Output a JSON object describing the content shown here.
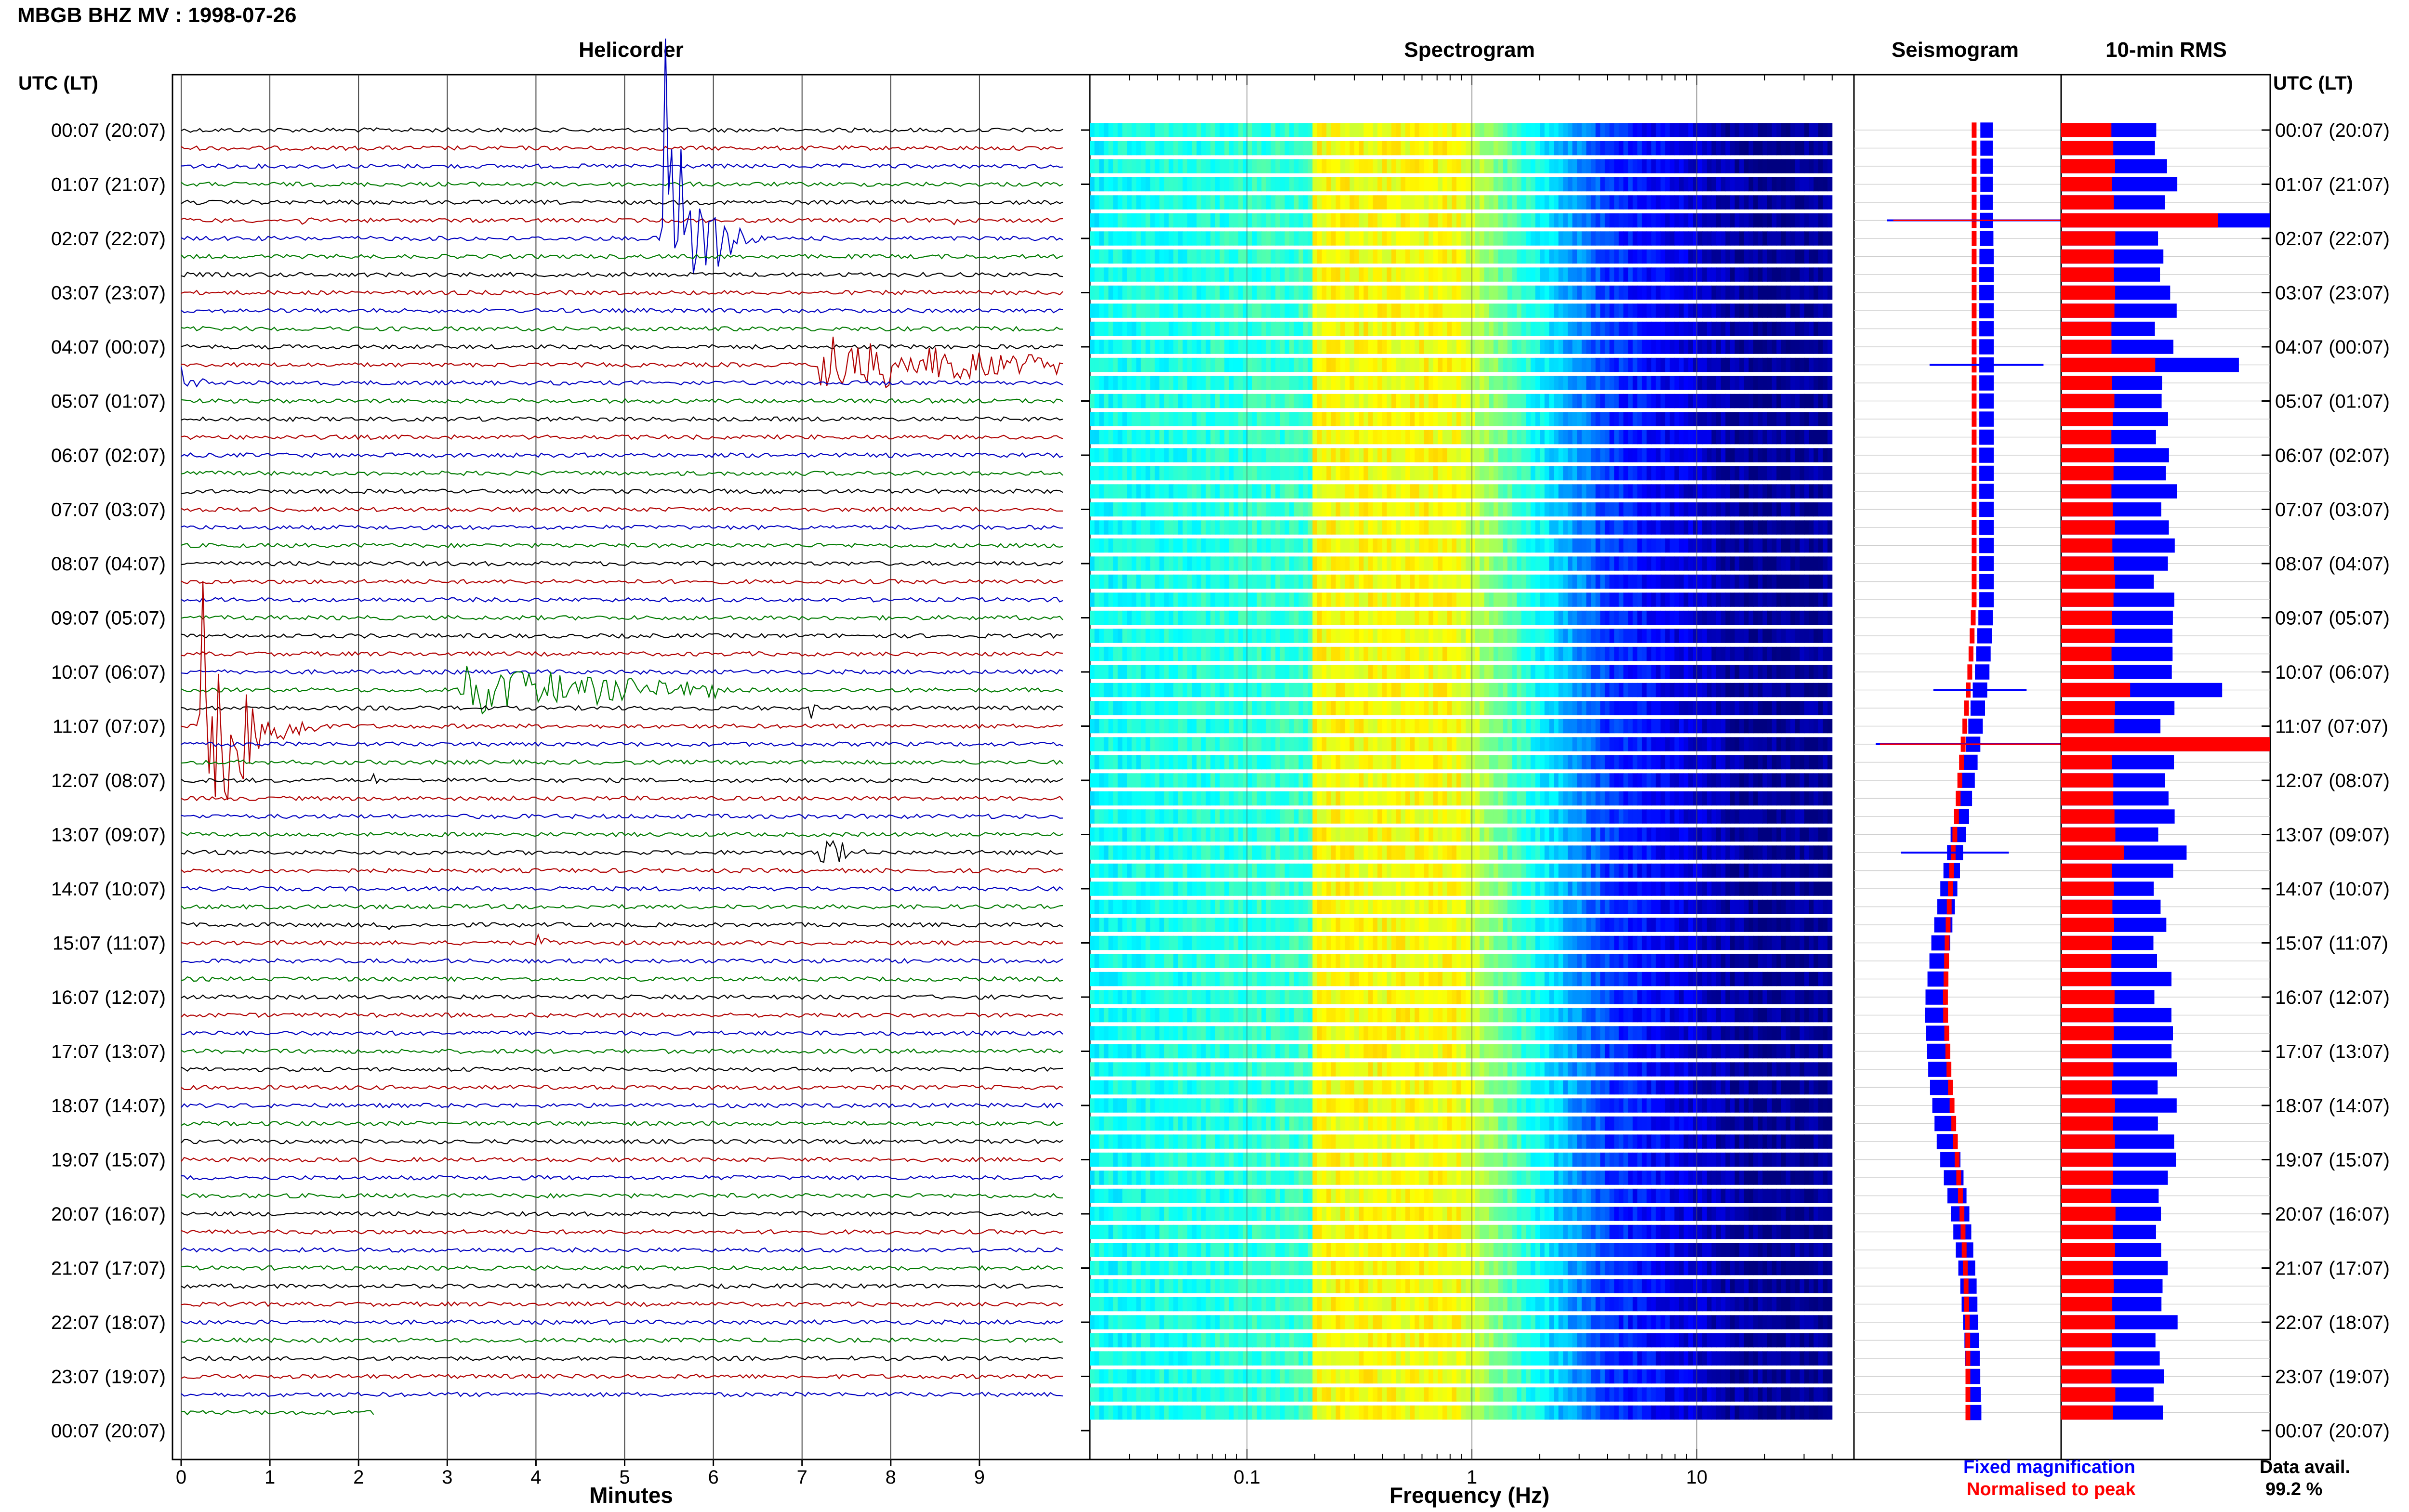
{
  "title": "MBGB BHZ MV : 1998-07-26",
  "panels": {
    "helicorder": "Helicorder",
    "spectrogram": "Spectrogram",
    "seismogram": "Seismogram",
    "rms": "10-min RMS"
  },
  "time_axis_label": "UTC (LT)",
  "time_labels": [
    "00:07 (20:07)",
    "01:07 (21:07)",
    "02:07 (22:07)",
    "03:07 (23:07)",
    "04:07 (00:07)",
    "05:07 (01:07)",
    "06:07 (02:07)",
    "07:07 (03:07)",
    "08:07 (04:07)",
    "09:07 (05:07)",
    "10:07 (06:07)",
    "11:07 (07:07)",
    "12:07 (08:07)",
    "13:07 (09:07)",
    "14:07 (10:07)",
    "15:07 (11:07)",
    "16:07 (12:07)",
    "17:07 (13:07)",
    "18:07 (14:07)",
    "19:07 (15:07)",
    "20:07 (16:07)",
    "21:07 (17:07)",
    "22:07 (18:07)",
    "23:07 (19:07)",
    "00:07 (20:07)"
  ],
  "legend": {
    "fixed": "Fixed magnification",
    "normalised": "Normalised to peak"
  },
  "availability": {
    "label": "Data avail.",
    "value": "99.2 %"
  },
  "colors": {
    "trace_cycle": [
      "#000000",
      "#b00000",
      "#0000c0",
      "#007a00"
    ],
    "fixed": "#0000ff",
    "normalised": "#ff0000"
  },
  "chart_data": [
    {
      "type": "line",
      "panel": "helicorder",
      "xlabel": "Minutes",
      "x_ticks": [
        "0",
        "1",
        "2",
        "3",
        "4",
        "5",
        "6",
        "7",
        "8",
        "9"
      ],
      "xlim": [
        0,
        10
      ],
      "rows": 72,
      "events": [
        {
          "row": 6,
          "start_min": 5.4,
          "dur_min": 1.2,
          "amp": 14,
          "color": "#007a00"
        },
        {
          "row": 5,
          "start_min": 1.3,
          "dur_min": 0.2,
          "amp": 0.7,
          "color": "#b00000"
        },
        {
          "row": 5,
          "start_min": 8.7,
          "dur_min": 0.2,
          "amp": 0.7,
          "color": "#b00000"
        },
        {
          "row": 13,
          "start_min": 7.2,
          "dur_min": 2.7,
          "amp": 2.0,
          "color": "#007a00"
        },
        {
          "row": 14,
          "start_min": 0.0,
          "dur_min": 0.5,
          "amp": 1.2,
          "color": "#000000"
        },
        {
          "row": 31,
          "start_min": 3.1,
          "dur_min": 3.0,
          "amp": 1.6,
          "color": "#b00000"
        },
        {
          "row": 32,
          "start_min": 7.1,
          "dur_min": 0.2,
          "amp": 0.7,
          "color": "#0000c0"
        },
        {
          "row": 33,
          "start_min": 0.2,
          "dur_min": 1.4,
          "amp": 14,
          "color": "#000000"
        },
        {
          "row": 36,
          "start_min": 2.1,
          "dur_min": 0.3,
          "amp": 0.8,
          "color": "#b00000"
        },
        {
          "row": 40,
          "start_min": 7.2,
          "dur_min": 0.6,
          "amp": 2.5,
          "color": "#b00000"
        },
        {
          "row": 44,
          "start_min": 2.3,
          "dur_min": 0.3,
          "amp": 0.9,
          "color": "#0000c0"
        },
        {
          "row": 45,
          "start_min": 4.0,
          "dur_min": 0.3,
          "amp": 0.8,
          "color": "#b00000"
        }
      ]
    },
    {
      "type": "heatmap",
      "panel": "spectrogram",
      "xlabel": "Frequency (Hz)",
      "x_scale": "log",
      "xlim": [
        0.02,
        50
      ],
      "x_ticks": [
        0.1,
        1,
        10
      ],
      "x_tick_labels": [
        "0.1",
        "1",
        "10"
      ],
      "f_max": 40,
      "rows": 72
    },
    {
      "type": "bar",
      "panel": "seismogram",
      "rows": 72,
      "fixed_center_profile": [
        0.64,
        0.64,
        0.64,
        0.64,
        0.64,
        0.64,
        0.64,
        0.64,
        0.62,
        0.58,
        0.53,
        0.47,
        0.42,
        0.39,
        0.41,
        0.45,
        0.51,
        0.55,
        0.57,
        0.58
      ],
      "fixed_width_profile": [
        0.06,
        0.06,
        0.07,
        0.07,
        0.07,
        0.07,
        0.07,
        0.07,
        0.07,
        0.07,
        0.07,
        0.08,
        0.09,
        0.1,
        0.1,
        0.1,
        0.09,
        0.08,
        0.07,
        0.07
      ],
      "normalised_center_profile": [
        0.58,
        0.58,
        0.58,
        0.58,
        0.58,
        0.58,
        0.58,
        0.58,
        0.56,
        0.53,
        0.5,
        0.47,
        0.45,
        0.44,
        0.46,
        0.49,
        0.52,
        0.54,
        0.55,
        0.55
      ],
      "spikes": [
        {
          "row": 5,
          "fixed_width": 0.96,
          "normalised_width": 0.9
        },
        {
          "row": 13,
          "fixed_width": 0.55,
          "normalised_width": 0.0
        },
        {
          "row": 31,
          "fixed_width": 0.45,
          "normalised_width": 0.0
        },
        {
          "row": 34,
          "fixed_width": 0.94,
          "normalised_width": 0.9
        },
        {
          "row": 40,
          "fixed_width": 0.52,
          "normalised_width": 0.0
        }
      ]
    },
    {
      "type": "bar",
      "panel": "rms",
      "rows": 72,
      "normalised_base": 0.25,
      "fixed_base": 0.5,
      "peaks": [
        {
          "row": 5,
          "fixed": 1.0,
          "normalised": 0.75
        },
        {
          "row": 13,
          "fixed": 0.85,
          "normalised": 0.45
        },
        {
          "row": 31,
          "fixed": 0.77,
          "normalised": 0.33
        },
        {
          "row": 34,
          "fixed": 1.0,
          "normalised": 1.0
        },
        {
          "row": 40,
          "fixed": 0.6,
          "normalised": 0.3
        }
      ]
    }
  ]
}
